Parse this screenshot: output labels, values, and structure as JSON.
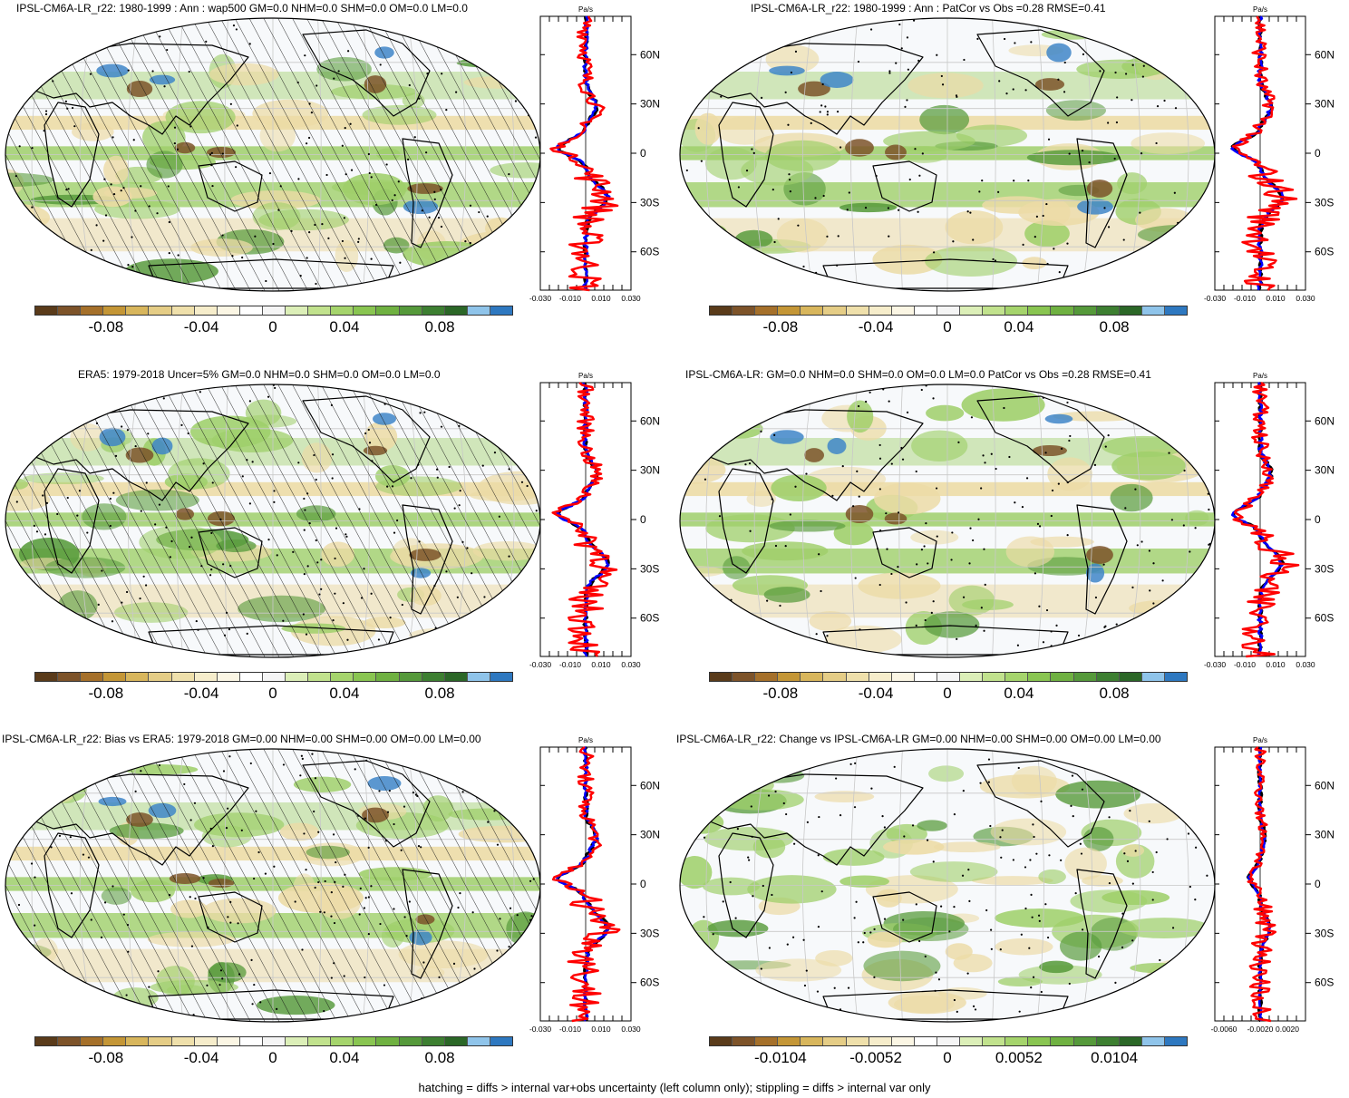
{
  "panels": [
    {
      "id": "p1",
      "title": "IPSL-CM6A-LR_r22: 1980-1999 : Ann : wap500 GM=0.0 NHM=0.0 SHM=0.0 OM=0.0 LM=0.0",
      "hatching": true,
      "colorbar_labels": [
        "-0.08",
        "-0.04",
        "0",
        "0.04",
        "0.08"
      ],
      "profile": {
        "unit": "Pa/s",
        "x_ticks": [
          "-0.030",
          "-0.010",
          "0.010",
          "0.030"
        ],
        "lat_ticks": [
          "60N",
          "30N",
          "0",
          "30S",
          "60S"
        ]
      }
    },
    {
      "id": "p2",
      "title": "IPSL-CM6A-LR_r22: 1980-1999 : Ann : PatCor vs Obs =0.28 RMSE=0.41",
      "hatching": false,
      "colorbar_labels": [
        "-0.08",
        "-0.04",
        "0",
        "0.04",
        "0.08"
      ],
      "profile": {
        "unit": "Pa/s",
        "x_ticks": [
          "-0.030",
          "-0.010",
          "0.010",
          "0.030"
        ],
        "lat_ticks": [
          "60N",
          "30N",
          "0",
          "30S",
          "60S"
        ]
      }
    },
    {
      "id": "p3",
      "title": "ERA5: 1979-2018 Uncer=5% GM=0.0 NHM=0.0 SHM=0.0 OM=0.0 LM=0.0",
      "hatching": true,
      "colorbar_labels": [
        "-0.08",
        "-0.04",
        "0",
        "0.04",
        "0.08"
      ],
      "profile": {
        "unit": "Pa/s",
        "x_ticks": [
          "-0.030",
          "-0.010",
          "0.010",
          "0.030"
        ],
        "lat_ticks": [
          "60N",
          "30N",
          "0",
          "30S",
          "60S"
        ]
      }
    },
    {
      "id": "p4",
      "title": "IPSL-CM6A-LR: GM=0.0 NHM=0.0 SHM=0.0 OM=0.0 LM=0.0 PatCor vs Obs =0.28 RMSE=0.41",
      "hatching": false,
      "colorbar_labels": [
        "-0.08",
        "-0.04",
        "0",
        "0.04",
        "0.08"
      ],
      "profile": {
        "unit": "Pa/s",
        "x_ticks": [
          "-0.030",
          "-0.010",
          "0.010",
          "0.030"
        ],
        "lat_ticks": [
          "60N",
          "30N",
          "0",
          "30S",
          "60S"
        ]
      }
    },
    {
      "id": "p5",
      "title": "IPSL-CM6A-LR_r22: Bias vs ERA5: 1979-2018 GM=0.00 NHM=0.00 SHM=0.00 OM=0.00 LM=0.00",
      "hatching": true,
      "colorbar_labels": [
        "-0.08",
        "-0.04",
        "0",
        "0.04",
        "0.08"
      ],
      "profile": {
        "unit": "Pa/s",
        "x_ticks": [
          "-0.030",
          "-0.010",
          "0.010",
          "0.030"
        ],
        "lat_ticks": [
          "60N",
          "30N",
          "0",
          "30S",
          "60S"
        ]
      }
    },
    {
      "id": "p6",
      "title": "IPSL-CM6A-LR_r22: Change vs IPSL-CM6A-LR GM=0.00 NHM=0.00 SHM=0.00 OM=0.00 LM=0.00",
      "hatching": false,
      "colorbar_labels": [
        "-0.0104",
        "-0.0052",
        "0",
        "0.0052",
        "0.0104"
      ],
      "profile": {
        "unit": "Pa/s",
        "x_ticks": [
          "-0.0060",
          "-0.0020",
          "0.0020"
        ],
        "lat_ticks": [
          "60N",
          "30N",
          "0",
          "30S",
          "60S"
        ]
      }
    }
  ],
  "colorbar_colors": [
    "#5a3b1a",
    "#7d5329",
    "#a5702a",
    "#c49636",
    "#d8b65c",
    "#e5cd86",
    "#efe0ab",
    "#f6edcb",
    "#fbf6e4",
    "#ffffff",
    "#f5f5f5",
    "#dcefb8",
    "#c1e28d",
    "#a5d46c",
    "#89c551",
    "#6fb141",
    "#55993a",
    "#3d7f31",
    "#2b6727",
    "#8fc4ea",
    "#2e78c0"
  ],
  "profile_colors": {
    "model": "#ff0000",
    "obs": "#0000ff",
    "ref": "#000000"
  },
  "map_colors": {
    "ocean": "#f7f9fb",
    "green": "#9fcf6a",
    "dark_green": "#5a9c3e",
    "tan": "#ecdba6",
    "brown": "#7d5329",
    "blue": "#3f86c8"
  },
  "footer": "hatching = diffs > internal var+obs uncertainty (left column only); stippling = diffs > internal var only"
}
